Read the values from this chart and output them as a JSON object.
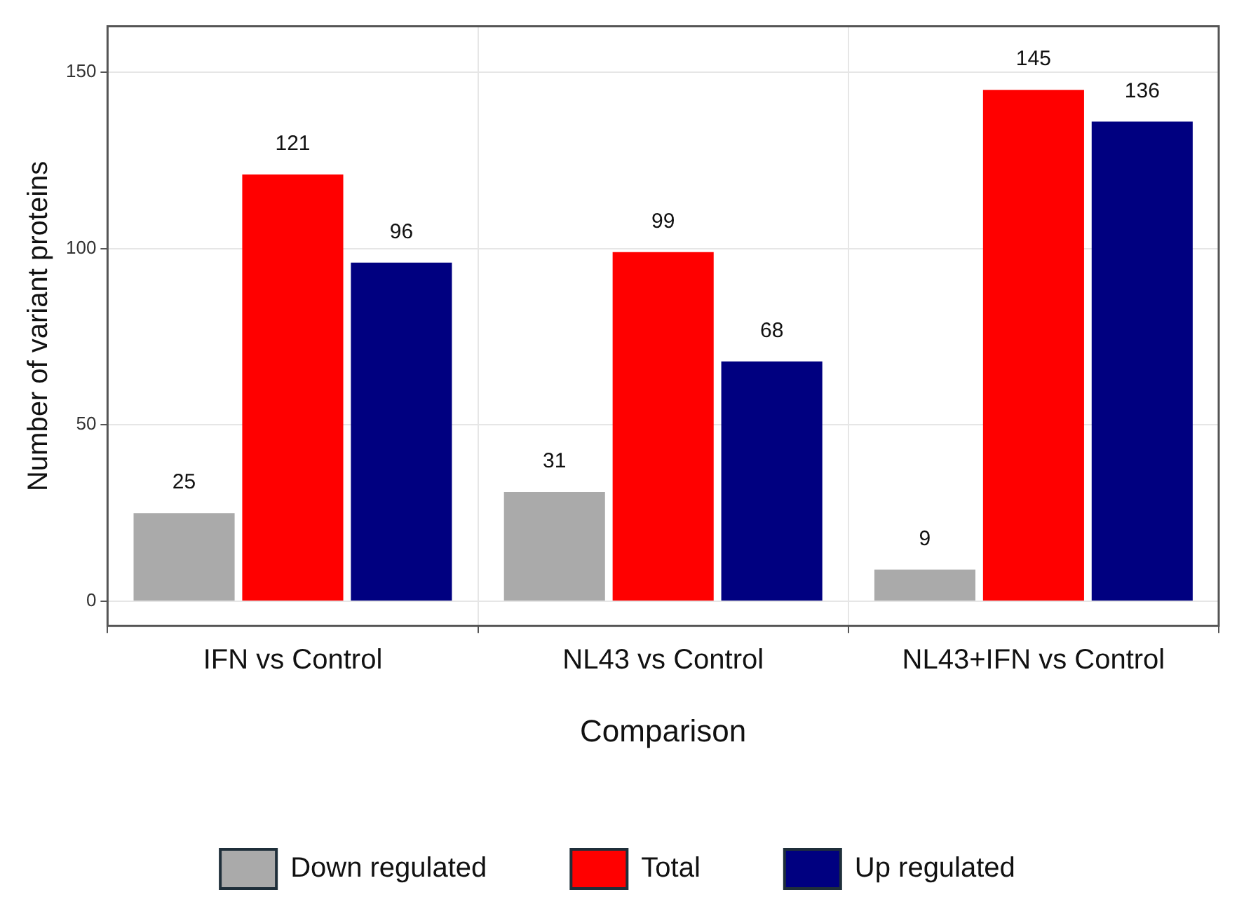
{
  "chart_data": {
    "type": "bar",
    "xlabel": "Comparison",
    "ylabel": "Number of variant proteins",
    "categories": [
      "IFN vs Control",
      "NL43 vs Control",
      "NL43+IFN vs Control"
    ],
    "series": [
      {
        "name": "Down regulated",
        "color": "#aaaaaa",
        "values": [
          25,
          31,
          9
        ]
      },
      {
        "name": "Total",
        "color": "#ff0000",
        "values": [
          121,
          99,
          145
        ]
      },
      {
        "name": "Up regulated",
        "color": "#000080",
        "values": [
          96,
          68,
          136
        ]
      }
    ],
    "ylim": [
      -7,
      163
    ],
    "yticks": [
      0,
      50,
      100,
      150
    ],
    "grid": true,
    "legend": "bottom",
    "data_labels": true
  }
}
